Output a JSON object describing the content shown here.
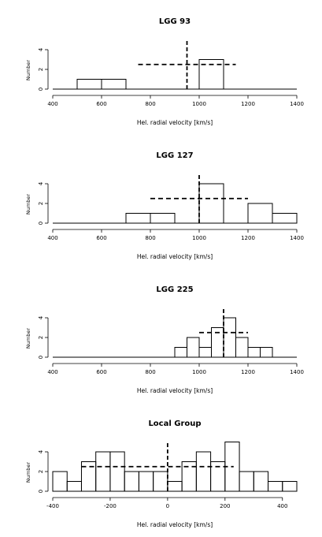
{
  "chart_data": [
    {
      "type": "bar",
      "title": "LGG 93",
      "xlabel": "Hel. radial velocity [km/s]",
      "ylabel": "Number",
      "xlim": [
        400,
        1400
      ],
      "xticks": [
        400,
        600,
        800,
        1000,
        1200,
        1400
      ],
      "ylim": [
        0,
        4
      ],
      "yticks": [
        0,
        2,
        4
      ],
      "bins": [
        {
          "x0": 500,
          "x1": 600,
          "count": 1
        },
        {
          "x0": 600,
          "x1": 700,
          "count": 1
        },
        {
          "x0": 1000,
          "x1": 1100,
          "count": 3
        }
      ],
      "mean_line": 950,
      "dashed_band": {
        "x0": 750,
        "x1": 1150,
        "y": 2.5
      }
    },
    {
      "type": "bar",
      "title": "LGG 127",
      "xlabel": "Hel. radial velocity [km/s]",
      "ylabel": "Number",
      "xlim": [
        400,
        1400
      ],
      "xticks": [
        400,
        600,
        800,
        1000,
        1200,
        1400
      ],
      "ylim": [
        0,
        4
      ],
      "yticks": [
        0,
        2,
        4
      ],
      "bins": [
        {
          "x0": 700,
          "x1": 800,
          "count": 1
        },
        {
          "x0": 800,
          "x1": 900,
          "count": 1
        },
        {
          "x0": 1000,
          "x1": 1100,
          "count": 4
        },
        {
          "x0": 1200,
          "x1": 1300,
          "count": 2
        },
        {
          "x0": 1300,
          "x1": 1400,
          "count": 1
        }
      ],
      "mean_line": 1000,
      "dashed_band": {
        "x0": 800,
        "x1": 1200,
        "y": 2.5
      }
    },
    {
      "type": "bar",
      "title": "LGG 225",
      "xlabel": "Hel. radial velocity [km/s]",
      "ylabel": "Number",
      "xlim": [
        400,
        1400
      ],
      "xticks": [
        400,
        600,
        800,
        1000,
        1200,
        1400
      ],
      "ylim": [
        0,
        4
      ],
      "yticks": [
        0,
        2,
        4
      ],
      "bins": [
        {
          "x0": 900,
          "x1": 950,
          "count": 1
        },
        {
          "x0": 950,
          "x1": 1000,
          "count": 2
        },
        {
          "x0": 1000,
          "x1": 1050,
          "count": 1
        },
        {
          "x0": 1050,
          "x1": 1100,
          "count": 3
        },
        {
          "x0": 1100,
          "x1": 1150,
          "count": 4
        },
        {
          "x0": 1150,
          "x1": 1200,
          "count": 2
        },
        {
          "x0": 1200,
          "x1": 1250,
          "count": 1
        },
        {
          "x0": 1250,
          "x1": 1300,
          "count": 1
        }
      ],
      "mean_line": 1100,
      "dashed_band": {
        "x0": 1000,
        "x1": 1200,
        "y": 2.5
      }
    },
    {
      "type": "bar",
      "title": "Local Group",
      "xlabel": "Hel. radial velocity [km/s]",
      "ylabel": "Number",
      "xlim": [
        -400,
        450
      ],
      "xticks": [
        -400,
        -200,
        0,
        200,
        400
      ],
      "ylim": [
        0,
        4
      ],
      "yticks": [
        0,
        2,
        4
      ],
      "bins": [
        {
          "x0": -400,
          "x1": -350,
          "count": 2
        },
        {
          "x0": -350,
          "x1": -300,
          "count": 1
        },
        {
          "x0": -300,
          "x1": -250,
          "count": 3
        },
        {
          "x0": -250,
          "x1": -200,
          "count": 4
        },
        {
          "x0": -200,
          "x1": -150,
          "count": 4
        },
        {
          "x0": -150,
          "x1": -100,
          "count": 2
        },
        {
          "x0": -100,
          "x1": -50,
          "count": 2
        },
        {
          "x0": -50,
          "x1": 0,
          "count": 2
        },
        {
          "x0": 0,
          "x1": 50,
          "count": 1
        },
        {
          "x0": 50,
          "x1": 100,
          "count": 3
        },
        {
          "x0": 100,
          "x1": 150,
          "count": 4
        },
        {
          "x0": 150,
          "x1": 200,
          "count": 3
        },
        {
          "x0": 200,
          "x1": 250,
          "count": 5
        },
        {
          "x0": 250,
          "x1": 300,
          "count": 2
        },
        {
          "x0": 300,
          "x1": 350,
          "count": 2
        },
        {
          "x0": 350,
          "x1": 400,
          "count": 1
        },
        {
          "x0": 400,
          "x1": 450,
          "count": 1
        }
      ],
      "mean_line": 0,
      "dashed_band": {
        "x0": -300,
        "x1": 230,
        "y": 2.5
      }
    }
  ]
}
